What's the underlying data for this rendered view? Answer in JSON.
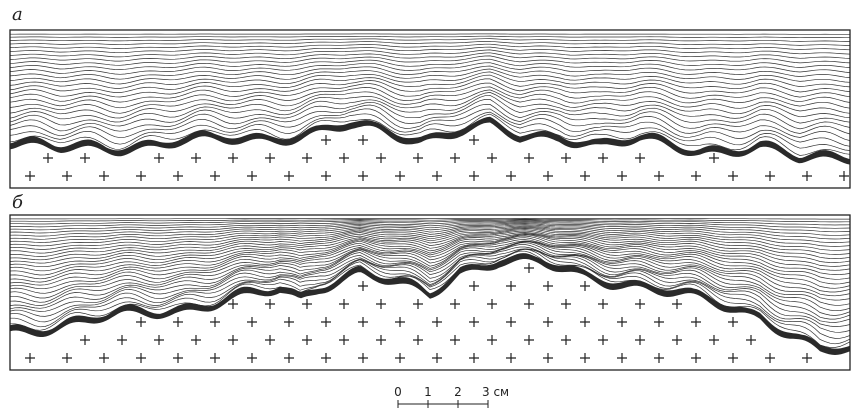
{
  "panels": [
    {
      "label": "а"
    },
    {
      "label": "б"
    }
  ],
  "scale": {
    "ticks": [
      "0",
      "1",
      "2"
    ],
    "unit_label": "3 см"
  }
}
